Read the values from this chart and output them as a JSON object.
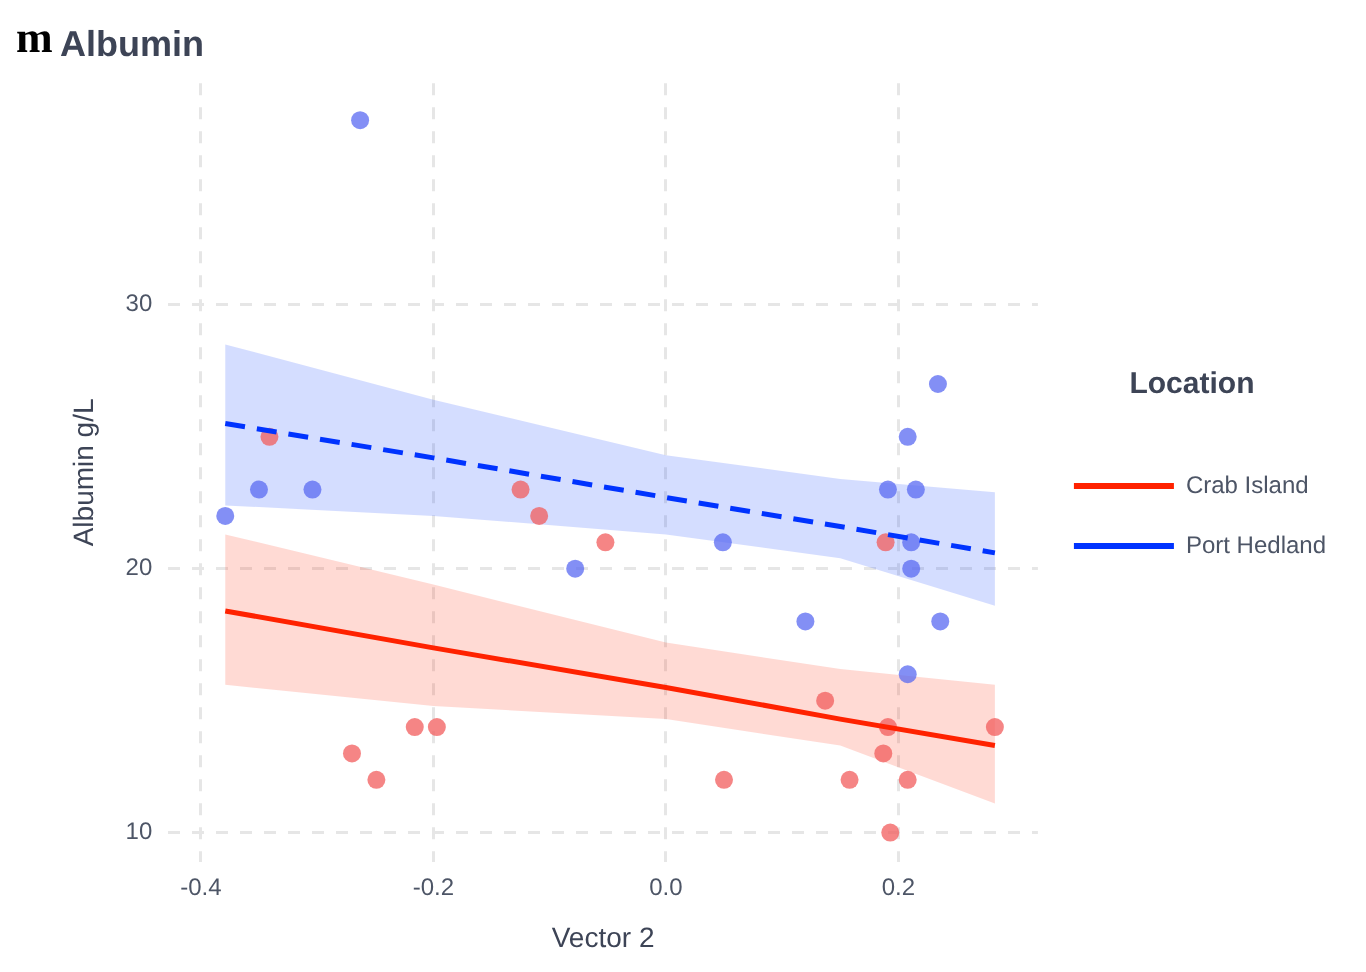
{
  "chart_data": {
    "type": "scatter",
    "title": "Albumin",
    "xlabel": "Vector 2",
    "ylabel": "Albumin g/L",
    "legend_title": "Location",
    "legend": "right",
    "grid": true,
    "annotations": [
      "m"
    ],
    "xlim": [
      -0.428,
      0.32
    ],
    "xticks": [
      -0.4,
      -0.2,
      {
        "value": 0,
        "label": "0.0"
      },
      0.2
    ],
    "ylim": [
      8.9,
      38.4
    ],
    "yticks": [
      10,
      20,
      30
    ],
    "series": [
      {
        "color": "#f25c5c",
        "marker": "circle",
        "x": [
          -0.341,
          -0.125,
          -0.109,
          -0.052,
          -0.27,
          -0.249,
          -0.216,
          -0.197,
          0.05,
          0.137,
          0.158,
          0.187,
          0.191,
          0.208,
          0.193,
          0.283,
          0.189
        ],
        "values": [
          25,
          23,
          22,
          21,
          13,
          12,
          14,
          14,
          12,
          15,
          12,
          13,
          14,
          12,
          10,
          14,
          21
        ]
      },
      {
        "color": "#5a6af2",
        "marker": "circle",
        "x": [
          -0.379,
          -0.35,
          -0.304,
          -0.263,
          -0.078,
          0.049,
          0.12,
          0.191,
          0.208,
          0.215,
          0.211,
          0.211,
          0.208,
          0.234,
          0.236
        ],
        "values": [
          22,
          23,
          23,
          37,
          20,
          21,
          18,
          23,
          25,
          23,
          21,
          20,
          16,
          27,
          18
        ]
      },
      {
        "type": "line",
        "name": "Crab Island",
        "color": "#ff2200",
        "line_style": "solid",
        "marker": "none",
        "x": [
          -0.379,
          -0.2,
          0,
          0.15,
          0.283
        ],
        "values": [
          18.4,
          17.0,
          15.5,
          14.3,
          13.3
        ],
        "lower": [
          15.6,
          14.8,
          14.3,
          13.3,
          11.1
        ],
        "upper": [
          21.3,
          19.4,
          17.2,
          16.2,
          15.6
        ]
      },
      {
        "type": "line",
        "name": "Port Hedland",
        "color": "#0033ff",
        "line_style": "dashed",
        "marker": "none",
        "x": [
          -0.379,
          -0.2,
          0,
          0.15,
          0.283
        ],
        "values": [
          25.5,
          24.2,
          22.7,
          21.6,
          20.6
        ],
        "lower": [
          22.4,
          22.0,
          21.3,
          20.4,
          18.6
        ],
        "upper": [
          28.5,
          26.4,
          24.3,
          23.4,
          22.9
        ]
      }
    ]
  }
}
